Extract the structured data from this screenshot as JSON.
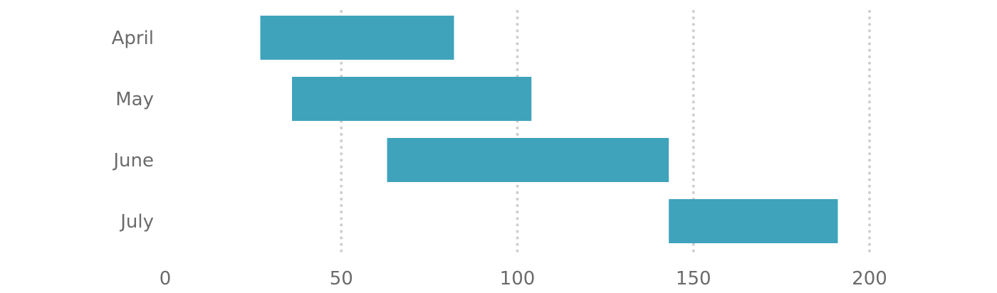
{
  "chart_data": {
    "type": "bar",
    "orientation": "horizontal",
    "subtype": "floating-range",
    "categories": [
      "April",
      "May",
      "June",
      "July"
    ],
    "series": [
      {
        "ranges": [
          [
            27,
            82
          ],
          [
            36,
            104
          ],
          [
            63,
            143
          ],
          [
            143,
            191
          ]
        ]
      }
    ],
    "x_ticks": [
      "0",
      "50",
      "100",
      "150",
      "200"
    ],
    "xlim": [
      0,
      225
    ],
    "grid": "vertical-dotted",
    "bar_color": "#3fa3bc",
    "grid_color": "#cfcfcf",
    "text_color": "#6b6b6b",
    "title": "",
    "xlabel": "",
    "ylabel": ""
  }
}
